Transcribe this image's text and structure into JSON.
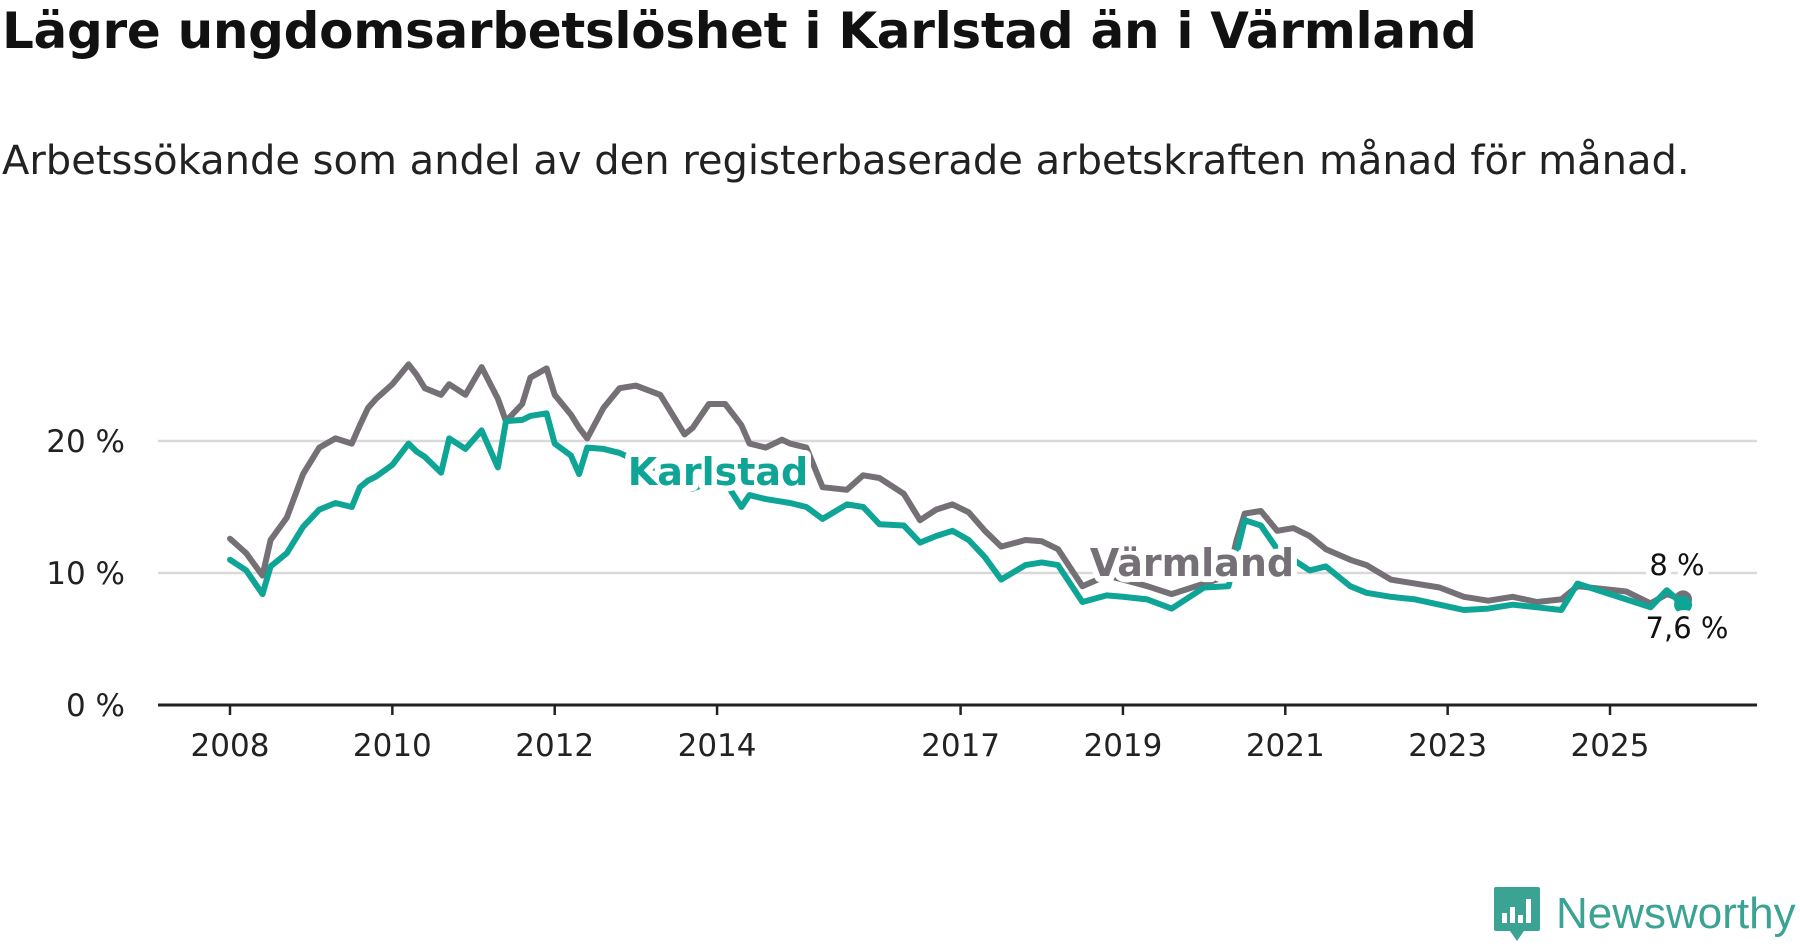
{
  "title": "Lägre ungdomsarbetslöshet i Karlstad än i Värmland",
  "subtitle": "Arbetssökande som andel av den registerbaserade arbetskraften månad för månad.",
  "brand": {
    "name": "Newsworthy",
    "icon": "newsworthy-logo-icon"
  },
  "colors": {
    "karlstad": "#0fa596",
    "varmland": "#747075",
    "grid": "#d9d9d9",
    "axis": "#222222"
  },
  "chart_data": {
    "type": "line",
    "title": "Lägre ungdomsarbetslöshet i Karlstad än i Värmland",
    "xlabel": "",
    "ylabel": "",
    "xlim": [
      2008,
      2026.9
    ],
    "ylim": [
      0,
      25
    ],
    "y_ticks": [
      0,
      10,
      20
    ],
    "y_tick_labels": [
      "0 %",
      "10 %",
      "20 %"
    ],
    "x_ticks": [
      2008,
      2010,
      2012,
      2014,
      2017,
      2019,
      2021,
      2023,
      2025
    ],
    "x_tick_labels": [
      "2008",
      "2010",
      "2012",
      "2014",
      "2017",
      "2019",
      "2021",
      "2023",
      "2025"
    ],
    "grid": true,
    "series": [
      {
        "name": "Värmland",
        "label": "Värmland",
        "end_label": "8 %",
        "x": [
          2008.0,
          2008.2,
          2008.4,
          2008.5,
          2008.7,
          2008.9,
          2009.1,
          2009.3,
          2009.5,
          2009.6,
          2009.7,
          2009.8,
          2010.0,
          2010.2,
          2010.3,
          2010.4,
          2010.6,
          2010.7,
          2010.9,
          2011.1,
          2011.3,
          2011.4,
          2011.6,
          2011.7,
          2011.9,
          2012.0,
          2012.2,
          2012.3,
          2012.4,
          2012.6,
          2012.8,
          2013.0,
          2013.3,
          2013.4,
          2013.6,
          2013.7,
          2013.9,
          2014.1,
          2014.3,
          2014.4,
          2014.6,
          2014.8,
          2014.9,
          2015.1,
          2015.3,
          2015.6,
          2015.8,
          2016.0,
          2016.3,
          2016.5,
          2016.7,
          2016.9,
          2017.1,
          2017.3,
          2017.5,
          2017.8,
          2018.0,
          2018.2,
          2018.5,
          2018.8,
          2019.0,
          2019.3,
          2019.6,
          2020.0,
          2020.3,
          2020.4,
          2020.5,
          2020.7,
          2020.9,
          2021.1,
          2021.3,
          2021.5,
          2021.8,
          2022.0,
          2022.3,
          2022.6,
          2022.9,
          2023.2,
          2023.5,
          2023.8,
          2024.1,
          2024.4,
          2024.6,
          2024.9,
          2025.2,
          2025.5,
          2025.7,
          2025.9
        ],
        "values": [
          12.6,
          11.5,
          9.8,
          12.5,
          14.2,
          17.5,
          19.5,
          20.2,
          19.8,
          21.2,
          22.5,
          23.2,
          24.3,
          25.8,
          25.0,
          24.0,
          23.5,
          24.3,
          23.5,
          25.6,
          23.2,
          21.5,
          22.8,
          24.8,
          25.5,
          23.5,
          22.0,
          21.0,
          20.2,
          22.5,
          24.0,
          24.2,
          23.5,
          22.5,
          20.5,
          21.0,
          22.8,
          22.8,
          21.2,
          19.8,
          19.5,
          20.1,
          19.8,
          19.5,
          16.5,
          16.3,
          17.4,
          17.2,
          16.0,
          14.0,
          14.8,
          15.2,
          14.6,
          13.2,
          12.0,
          12.5,
          12.4,
          11.8,
          9.0,
          9.8,
          9.5,
          9.0,
          8.4,
          9.2,
          9.8,
          12.5,
          14.5,
          14.7,
          13.2,
          13.4,
          12.8,
          11.8,
          11.0,
          10.6,
          9.5,
          9.2,
          8.9,
          8.2,
          7.9,
          8.2,
          7.8,
          8.0,
          9.0,
          8.8,
          8.6,
          7.7,
          8.4,
          8.0
        ]
      },
      {
        "name": "Karlstad",
        "label": "Karlstad",
        "end_label": "7,6 %",
        "x": [
          2008.0,
          2008.2,
          2008.4,
          2008.5,
          2008.7,
          2008.9,
          2009.1,
          2009.3,
          2009.5,
          2009.6,
          2009.7,
          2009.8,
          2010.0,
          2010.2,
          2010.3,
          2010.4,
          2010.6,
          2010.7,
          2010.9,
          2011.1,
          2011.3,
          2011.4,
          2011.6,
          2011.7,
          2011.9,
          2012.0,
          2012.2,
          2012.3,
          2012.4,
          2012.6,
          2012.8,
          2013.0,
          2013.3,
          2013.4,
          2013.6,
          2013.7,
          2013.9,
          2014.1,
          2014.3,
          2014.4,
          2014.6,
          2014.8,
          2014.9,
          2015.1,
          2015.3,
          2015.6,
          2015.8,
          2016.0,
          2016.3,
          2016.5,
          2016.7,
          2016.9,
          2017.1,
          2017.3,
          2017.5,
          2017.8,
          2018.0,
          2018.2,
          2018.5,
          2018.8,
          2019.0,
          2019.3,
          2019.6,
          2020.0,
          2020.3,
          2020.4,
          2020.5,
          2020.7,
          2020.9,
          2021.1,
          2021.3,
          2021.5,
          2021.8,
          2022.0,
          2022.3,
          2022.6,
          2022.9,
          2023.2,
          2023.5,
          2023.8,
          2024.1,
          2024.4,
          2024.6,
          2024.9,
          2025.2,
          2025.5,
          2025.7,
          2025.9
        ],
        "values": [
          11.0,
          10.2,
          8.4,
          10.5,
          11.5,
          13.5,
          14.8,
          15.3,
          15.0,
          16.5,
          17.0,
          17.3,
          18.2,
          19.8,
          19.2,
          18.8,
          17.6,
          20.2,
          19.4,
          20.8,
          18.0,
          21.5,
          21.6,
          21.9,
          22.1,
          19.8,
          18.9,
          17.5,
          19.5,
          19.4,
          19.1,
          18.5,
          17.8,
          17.0,
          16.5,
          16.4,
          16.8,
          16.9,
          15.0,
          15.9,
          15.6,
          15.4,
          15.3,
          15.0,
          14.1,
          15.2,
          15.0,
          13.7,
          13.6,
          12.3,
          12.8,
          13.2,
          12.5,
          11.2,
          9.5,
          10.6,
          10.8,
          10.6,
          7.8,
          8.3,
          8.2,
          8.0,
          7.3,
          8.9,
          9.0,
          11.5,
          14.0,
          13.6,
          11.8,
          11.0,
          10.2,
          10.5,
          9.0,
          8.5,
          8.2,
          8.0,
          7.6,
          7.2,
          7.3,
          7.6,
          7.4,
          7.2,
          9.2,
          8.6,
          8.0,
          7.4,
          8.7,
          7.6
        ]
      }
    ]
  }
}
